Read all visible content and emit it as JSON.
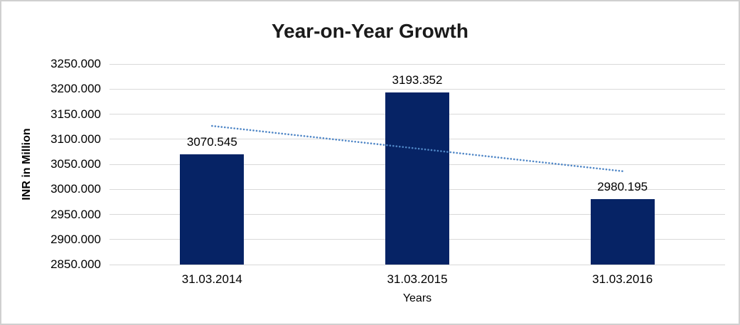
{
  "window": {
    "background": "#ffffff",
    "border_color": "#d0d0d0"
  },
  "chart_data": {
    "type": "bar",
    "title": "Year-on-Year Growth",
    "xlabel": "Years",
    "ylabel": "INR in Million",
    "categories": [
      "31.03.2014",
      "31.03.2015",
      "31.03.2016"
    ],
    "values": [
      3070.545,
      3193.352,
      2980.195
    ],
    "data_labels": [
      "3070.545",
      "3193.352",
      "2980.195"
    ],
    "ylim": [
      2850,
      3250
    ],
    "y_tick_step": 50,
    "y_tick_labels": [
      "3250.000",
      "3200.000",
      "3150.000",
      "3100.000",
      "3050.000",
      "3000.000",
      "2950.000",
      "2900.000",
      "2850.000"
    ],
    "grid": true,
    "legend": "none",
    "trendline": {
      "type": "linear",
      "style": "dotted",
      "color": "#4f86c6"
    },
    "colors": {
      "bar": "#062365",
      "gridline": "#d9d9d9",
      "text": "#000000",
      "title_text": "#1a1a1a"
    }
  }
}
